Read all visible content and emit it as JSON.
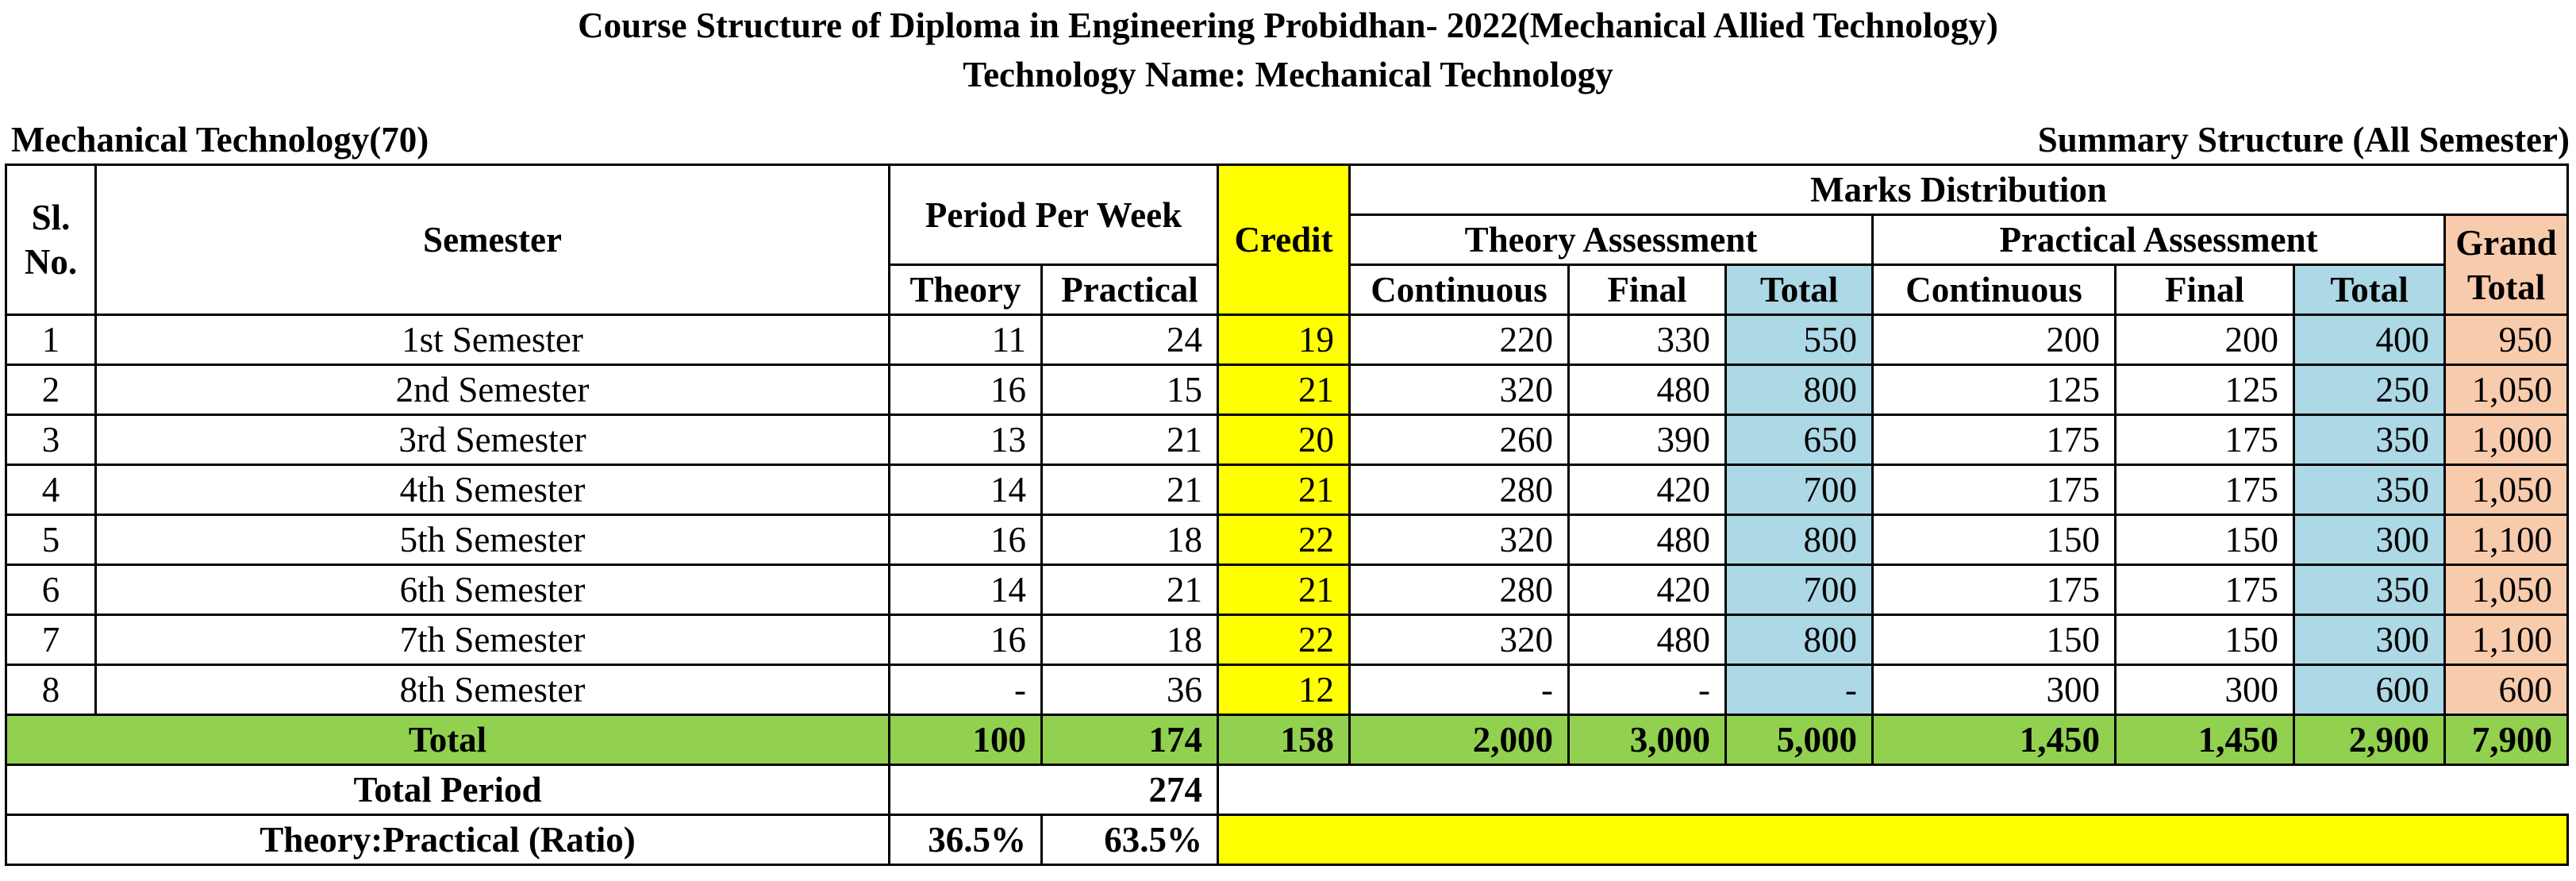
{
  "title_line1": "Course Structure of Diploma in Engineering Probidhan- 2022(Mechanical Allied Technology)",
  "title_line2": "Technology Name: Mechanical Technology",
  "subheader_left": "Mechanical Technology(70)",
  "subheader_right": "Summary Structure (All Semester)",
  "headers": {
    "sl_no": "Sl. No.",
    "semester": "Semester",
    "period_per_week": "Period Per Week",
    "credit": "Credit",
    "marks_distribution": "Marks Distribution",
    "theory_assessment": "Theory Assessment",
    "practical_assessment": "Practical Assessment",
    "grand_total": "Grand Total",
    "theory": "Theory",
    "practical": "Practical",
    "continuous": "Continuous",
    "final": "Final",
    "total": "Total"
  },
  "rows": [
    {
      "sl": "1",
      "semester": "1st Semester",
      "theory": "11",
      "practical": "24",
      "credit": "19",
      "t_cont": "220",
      "t_final": "330",
      "t_total": "550",
      "p_cont": "200",
      "p_final": "200",
      "p_total": "400",
      "grand": "950"
    },
    {
      "sl": "2",
      "semester": "2nd Semester",
      "theory": "16",
      "practical": "15",
      "credit": "21",
      "t_cont": "320",
      "t_final": "480",
      "t_total": "800",
      "p_cont": "125",
      "p_final": "125",
      "p_total": "250",
      "grand": "1,050"
    },
    {
      "sl": "3",
      "semester": "3rd Semester",
      "theory": "13",
      "practical": "21",
      "credit": "20",
      "t_cont": "260",
      "t_final": "390",
      "t_total": "650",
      "p_cont": "175",
      "p_final": "175",
      "p_total": "350",
      "grand": "1,000"
    },
    {
      "sl": "4",
      "semester": "4th Semester",
      "theory": "14",
      "practical": "21",
      "credit": "21",
      "t_cont": "280",
      "t_final": "420",
      "t_total": "700",
      "p_cont": "175",
      "p_final": "175",
      "p_total": "350",
      "grand": "1,050"
    },
    {
      "sl": "5",
      "semester": "5th Semester",
      "theory": "16",
      "practical": "18",
      "credit": "22",
      "t_cont": "320",
      "t_final": "480",
      "t_total": "800",
      "p_cont": "150",
      "p_final": "150",
      "p_total": "300",
      "grand": "1,100"
    },
    {
      "sl": "6",
      "semester": "6th Semester",
      "theory": "14",
      "practical": "21",
      "credit": "21",
      "t_cont": "280",
      "t_final": "420",
      "t_total": "700",
      "p_cont": "175",
      "p_final": "175",
      "p_total": "350",
      "grand": "1,050"
    },
    {
      "sl": "7",
      "semester": "7th Semester",
      "theory": "16",
      "practical": "18",
      "credit": "22",
      "t_cont": "320",
      "t_final": "480",
      "t_total": "800",
      "p_cont": "150",
      "p_final": "150",
      "p_total": "300",
      "grand": "1,100"
    },
    {
      "sl": "8",
      "semester": "8th Semester",
      "theory": "-",
      "practical": "36",
      "credit": "12",
      "t_cont": "-",
      "t_final": "-",
      "t_total": "-",
      "p_cont": "300",
      "p_final": "300",
      "p_total": "600",
      "grand": "600"
    }
  ],
  "totals": {
    "label": "Total",
    "theory": "100",
    "practical": "174",
    "credit": "158",
    "t_cont": "2,000",
    "t_final": "3,000",
    "t_total": "5,000",
    "p_cont": "1,450",
    "p_final": "1,450",
    "p_total": "2,900",
    "grand": "7,900"
  },
  "total_period": {
    "label": "Total Period",
    "value": "274"
  },
  "ratio": {
    "label": "Theory:Practical (Ratio)",
    "theory": "36.5%",
    "practical": "63.5%"
  }
}
